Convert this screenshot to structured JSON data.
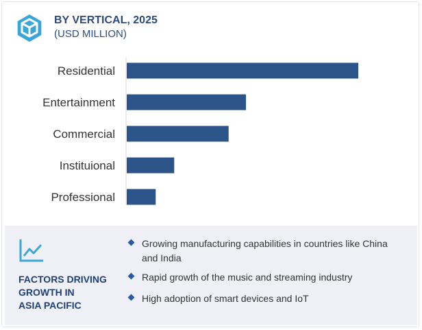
{
  "header": {
    "title": "BY VERTICAL, 2025",
    "subtitle": "(USD MILLION)",
    "logo_icon": "hexagon-cube-icon"
  },
  "chart_data": {
    "type": "bar",
    "orientation": "horizontal",
    "categories": [
      "Residential",
      "Entertainment",
      "Commercial",
      "Instituional",
      "Professional"
    ],
    "values": [
      100,
      51.5,
      44,
      20.5,
      12.5
    ],
    "xlim": [
      0,
      100
    ],
    "grid": false,
    "bar_color": "#2d5488"
  },
  "factors": {
    "icon": "line-chart-icon",
    "title_lines": [
      "FACTORS DRIVING",
      "GROWTH IN",
      "ASIA PACIFIC"
    ],
    "bullets": [
      "Growing manufacturing capabilities in countries like China and India",
      "Rapid growth of the music and streaming industry",
      "High adoption of smart devices and IoT"
    ]
  },
  "colors": {
    "accent": "#2c4a7e",
    "panel_bg": "#eef0f5",
    "bullet": "#2c5aa0"
  }
}
